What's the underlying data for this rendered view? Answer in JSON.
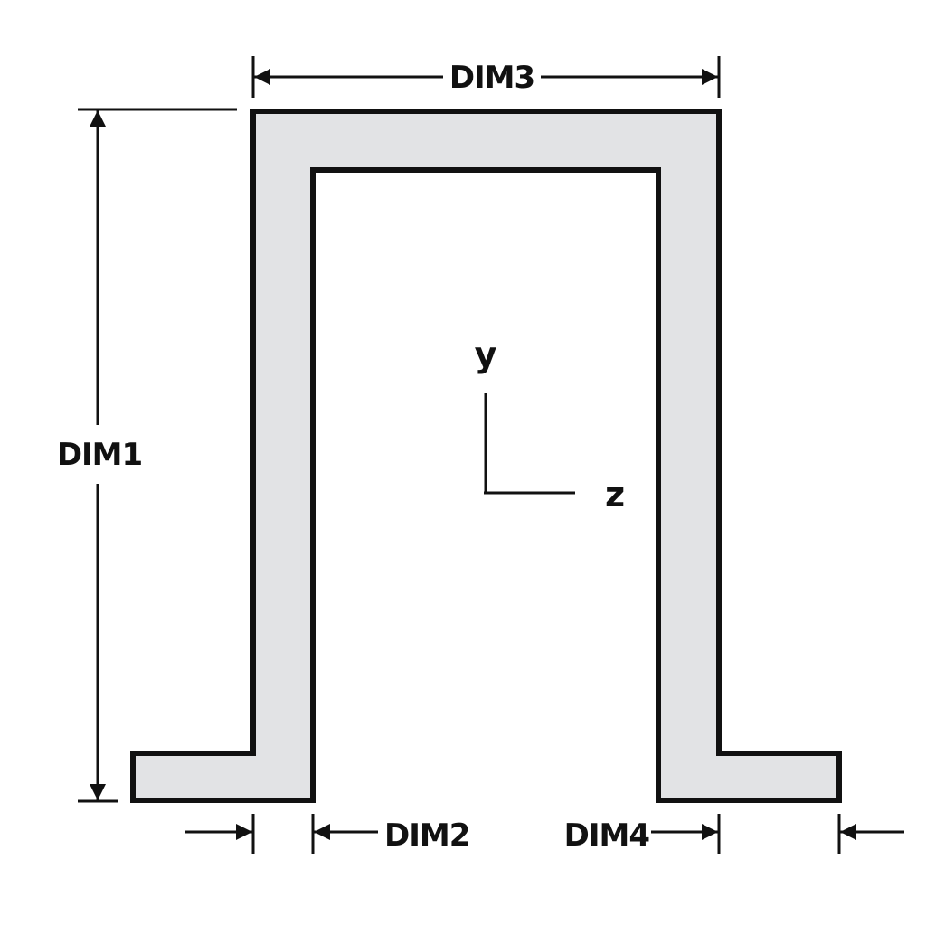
{
  "labels": {
    "dim1": "DIM1",
    "dim2": "DIM2",
    "dim3": "DIM3",
    "dim4": "DIM4",
    "axis_y": "y",
    "axis_z": "z"
  },
  "colors": {
    "section_fill": "#e2e3e5",
    "stroke": "#111111",
    "background": "#ffffff"
  }
}
